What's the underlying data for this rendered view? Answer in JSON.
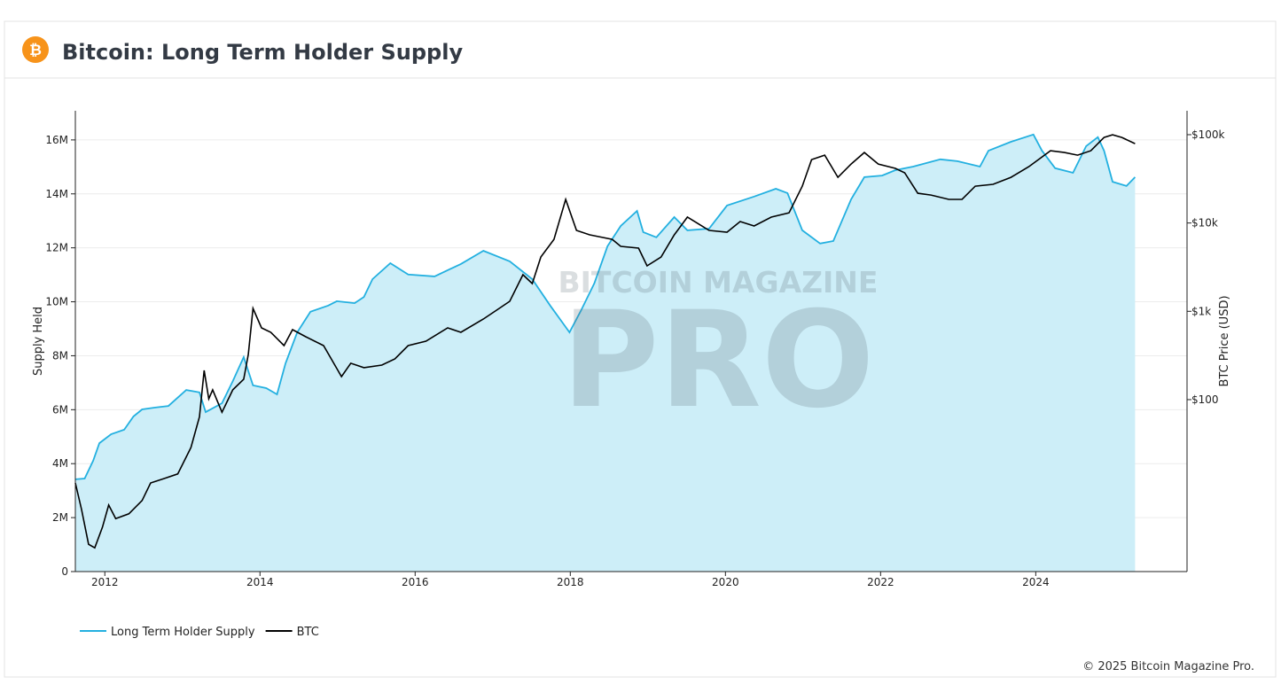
{
  "header": {
    "title": "Bitcoin: Long Term Holder Supply"
  },
  "watermark": {
    "top": "BITCOIN MAGAZINE",
    "main": "PRO"
  },
  "footer": "© 2025 Bitcoin Magazine Pro.",
  "chart_data": {
    "type": "line",
    "ylabel": "Supply Held",
    "y2label": "BTC Price (USD)",
    "xlim": [
      2011.62,
      2025.95
    ],
    "xticks": [
      2012,
      2014,
      2016,
      2018,
      2020,
      2022,
      2024
    ],
    "ylim": [
      0,
      17080000
    ],
    "yticks": [
      0,
      {
        "value": 2000000,
        "label": "2M"
      },
      {
        "value": 4000000,
        "label": "4M"
      },
      {
        "value": 6000000,
        "label": "6M"
      },
      {
        "value": 8000000,
        "label": "8M"
      },
      {
        "value": 10000000,
        "label": "10M"
      },
      {
        "value": 12000000,
        "label": "12M"
      },
      {
        "value": 14000000,
        "label": "14M"
      },
      {
        "value": 16000000,
        "label": "16M"
      }
    ],
    "y2lim": [
      1.13,
      186500
    ],
    "y2scale": "log",
    "y2ticks": [
      {
        "value": 100,
        "label": "$100"
      },
      {
        "value": 1000,
        "label": "$1k"
      },
      {
        "value": 10000,
        "label": "$10k"
      },
      {
        "value": 100000,
        "label": "$100k"
      }
    ],
    "grid": true,
    "legend": "bottom-left",
    "series": [
      {
        "name": "Long Term Holder Supply",
        "color": "#23b0e0",
        "fill": "#cdeef8",
        "area": true,
        "x": [
          2011.62,
          2011.74,
          2011.85,
          2011.93,
          2012.08,
          2012.25,
          2012.37,
          2012.48,
          2012.65,
          2012.82,
          2013.05,
          2013.22,
          2013.3,
          2013.51,
          2013.65,
          2013.79,
          2013.91,
          2014.08,
          2014.22,
          2014.33,
          2014.48,
          2014.65,
          2014.88,
          2014.99,
          2015.22,
          2015.34,
          2015.45,
          2015.68,
          2015.91,
          2016.25,
          2016.59,
          2016.88,
          2017.22,
          2017.51,
          2017.74,
          2017.99,
          2018.14,
          2018.31,
          2018.48,
          2018.65,
          2018.86,
          2018.94,
          2019.11,
          2019.34,
          2019.51,
          2019.79,
          2020.02,
          2020.37,
          2020.65,
          2020.8,
          2020.99,
          2021.22,
          2021.39,
          2021.62,
          2021.79,
          2022.02,
          2022.19,
          2022.42,
          2022.77,
          2022.99,
          2023.28,
          2023.39,
          2023.68,
          2023.97,
          2024.08,
          2024.25,
          2024.48,
          2024.65,
          2024.8,
          2024.88,
          2024.99,
          2025.17,
          2025.28
        ],
        "values": [
          3420000,
          3450000,
          4110000,
          4760000,
          5090000,
          5260000,
          5750000,
          6010000,
          6080000,
          6140000,
          6730000,
          6640000,
          5910000,
          6240000,
          7060000,
          7950000,
          6900000,
          6800000,
          6570000,
          7720000,
          8870000,
          9630000,
          9860000,
          10020000,
          9950000,
          10180000,
          10840000,
          11430000,
          11010000,
          10940000,
          11400000,
          11890000,
          11500000,
          10840000,
          9860000,
          8870000,
          9690000,
          10680000,
          12060000,
          12810000,
          13370000,
          12580000,
          12390000,
          13140000,
          12650000,
          12710000,
          13570000,
          13900000,
          14190000,
          14030000,
          12650000,
          12160000,
          12250000,
          13800000,
          14620000,
          14680000,
          14880000,
          15010000,
          15280000,
          15210000,
          15010000,
          15600000,
          15930000,
          16200000,
          15600000,
          14950000,
          14780000,
          15770000,
          16100000,
          15600000,
          14450000,
          14290000,
          14620000
        ]
      },
      {
        "name": "BTC",
        "color": "#000000",
        "axis": "y2",
        "x": [
          2011.62,
          2011.7,
          2011.79,
          2011.87,
          2011.97,
          2012.05,
          2012.14,
          2012.31,
          2012.48,
          2012.59,
          2012.77,
          2012.94,
          2013.11,
          2013.22,
          2013.28,
          2013.34,
          2013.39,
          2013.51,
          2013.65,
          2013.79,
          2013.85,
          2013.91,
          2014.02,
          2014.14,
          2014.31,
          2014.42,
          2014.59,
          2014.82,
          2015.05,
          2015.17,
          2015.34,
          2015.57,
          2015.74,
          2015.91,
          2016.14,
          2016.42,
          2016.59,
          2016.88,
          2017.05,
          2017.22,
          2017.39,
          2017.51,
          2017.62,
          2017.79,
          2017.94,
          2018.08,
          2018.25,
          2018.54,
          2018.65,
          2018.88,
          2018.99,
          2019.17,
          2019.34,
          2019.51,
          2019.79,
          2020.02,
          2020.19,
          2020.37,
          2020.59,
          2020.82,
          2020.99,
          2021.11,
          2021.28,
          2021.45,
          2021.62,
          2021.79,
          2021.97,
          2022.19,
          2022.31,
          2022.48,
          2022.65,
          2022.88,
          2023.05,
          2023.22,
          2023.45,
          2023.68,
          2023.91,
          2024.19,
          2024.37,
          2024.54,
          2024.71,
          2024.88,
          2024.99,
          2025.11,
          2025.28
        ],
        "values": [
          11.4,
          5.7,
          2.3,
          2.1,
          3.6,
          6.4,
          4.5,
          5.1,
          7.2,
          11.4,
          12.8,
          14.4,
          28.7,
          64,
          214,
          102,
          129,
          72,
          129,
          170,
          325,
          1080,
          649,
          578,
          409,
          620,
          515,
          409,
          182,
          258,
          230,
          246,
          289,
          409,
          459,
          649,
          578,
          818,
          1030,
          1298,
          2596,
          2061,
          4120,
          6530,
          18500,
          8240,
          7340,
          6530,
          5440,
          5190,
          3270,
          4120,
          7340,
          11650,
          8240,
          7870,
          10380,
          9250,
          11650,
          13070,
          26100,
          52200,
          58600,
          32900,
          46500,
          62800,
          46500,
          41500,
          37000,
          21700,
          20700,
          18500,
          18500,
          26100,
          27400,
          32900,
          43400,
          65800,
          62800,
          58600,
          65800,
          93100,
          99800,
          93100,
          79200
        ]
      }
    ]
  }
}
